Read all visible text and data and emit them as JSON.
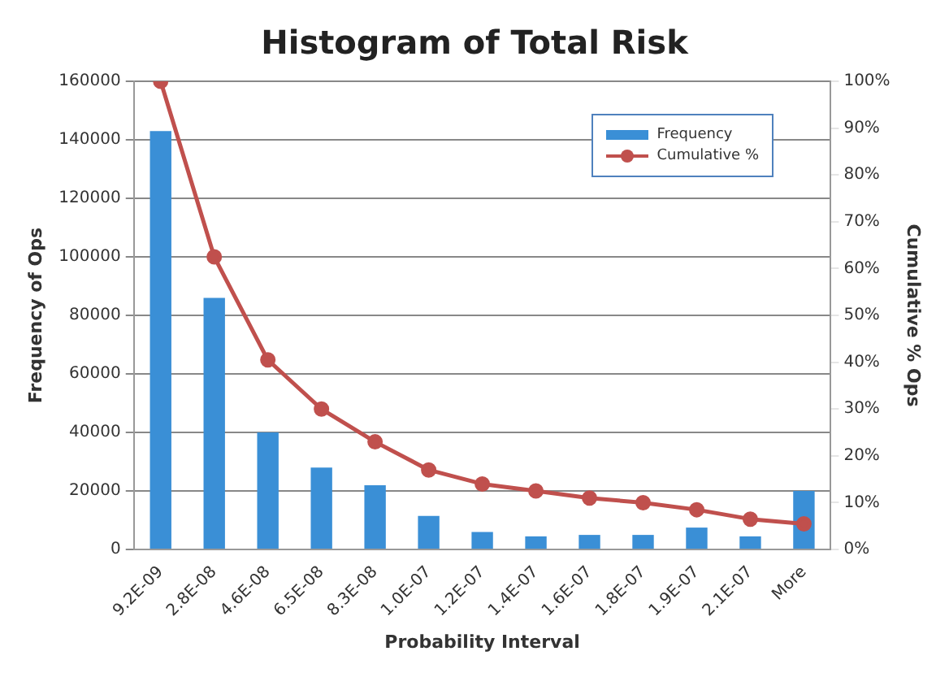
{
  "chart_data": {
    "type": "bar",
    "title": "Histogram of Total Risk",
    "xlabel": "Probability Interval",
    "ylabel": "Frequency of Ops",
    "y2label": "Cumulative % Ops",
    "categories": [
      "9.2E-09",
      "2.8E-08",
      "4.6E-08",
      "6.5E-08",
      "8.3E-08",
      "1.0E-07",
      "1.2E-07",
      "1.4E-07",
      "1.6E-07",
      "1.8E-07",
      "1.9E-07",
      "2.1E-07",
      "More"
    ],
    "series": [
      {
        "name": "Frequency",
        "color": "#3a8fd6",
        "values": [
          143000,
          86000,
          40000,
          28000,
          22000,
          11500,
          6000,
          4500,
          5000,
          5000,
          7500,
          4500,
          20000
        ]
      },
      {
        "name": "Cumulative %",
        "type": "line",
        "axis": "y2",
        "color": "#c0504d",
        "values": [
          100,
          62.5,
          40.5,
          30,
          23,
          17,
          14,
          12.5,
          11,
          10,
          8.5,
          6.5,
          5.5
        ]
      }
    ],
    "ylim": [
      0,
      160000
    ],
    "yticks": [
      0,
      20000,
      40000,
      60000,
      80000,
      100000,
      120000,
      140000,
      160000
    ],
    "y2lim": [
      0,
      100
    ],
    "y2ticks": [
      {
        "value": 0,
        "label": "0%"
      },
      {
        "value": 10,
        "label": "10%"
      },
      {
        "value": 20,
        "label": "20%"
      },
      {
        "value": 30,
        "label": "30%"
      },
      {
        "value": 40,
        "label": "40%"
      },
      {
        "value": 50,
        "label": "50%"
      },
      {
        "value": 60,
        "label": "60%"
      },
      {
        "value": 70,
        "label": "70%"
      },
      {
        "value": 80,
        "label": "80%"
      },
      {
        "value": 90,
        "label": "90%"
      },
      {
        "value": 100,
        "label": "100%"
      }
    ],
    "grid": "y",
    "legend": "top right",
    "marker": "circle"
  }
}
